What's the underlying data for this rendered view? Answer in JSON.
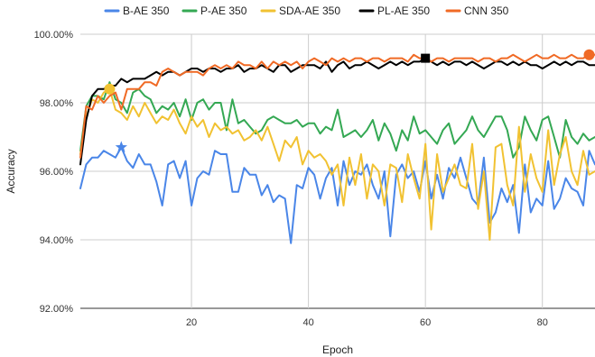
{
  "chart_data": {
    "type": "line",
    "title": "",
    "xlabel": "Epoch",
    "ylabel": "Accuracy",
    "xlim": [
      1,
      89
    ],
    "ylim": [
      92,
      100
    ],
    "x_ticks": [
      20,
      40,
      60,
      80
    ],
    "x_tick_labels": [
      "20",
      "40",
      "60",
      "80"
    ],
    "y_ticks": [
      92,
      94,
      96,
      98,
      100
    ],
    "y_tick_labels": [
      "92.00%",
      "94.00%",
      "96.00%",
      "98.00%",
      "100.00%"
    ],
    "grid": true,
    "legend_position": "top",
    "x": [
      1,
      2,
      3,
      4,
      5,
      6,
      7,
      8,
      9,
      10,
      11,
      12,
      13,
      14,
      15,
      16,
      17,
      18,
      19,
      20,
      21,
      22,
      23,
      24,
      25,
      26,
      27,
      28,
      29,
      30,
      31,
      32,
      33,
      34,
      35,
      36,
      37,
      38,
      39,
      40,
      41,
      42,
      43,
      44,
      45,
      46,
      47,
      48,
      49,
      50,
      51,
      52,
      53,
      54,
      55,
      56,
      57,
      58,
      59,
      60,
      61,
      62,
      63,
      64,
      65,
      66,
      67,
      68,
      69,
      70,
      71,
      72,
      73,
      74,
      75,
      76,
      77,
      78,
      79,
      80,
      81,
      82,
      83,
      84,
      85,
      86,
      87,
      88,
      89
    ],
    "series": [
      {
        "name": "B-AE 350",
        "color": "#4a86e8",
        "values": [
          95.5,
          96.2,
          96.4,
          96.4,
          96.6,
          96.5,
          96.4,
          96.7,
          96.3,
          96.1,
          96.5,
          96.2,
          96.2,
          95.7,
          95.0,
          96.2,
          96.3,
          95.8,
          96.3,
          95.0,
          95.8,
          96.0,
          95.9,
          96.6,
          96.5,
          96.5,
          95.4,
          95.4,
          96.1,
          95.9,
          95.9,
          95.3,
          95.6,
          95.1,
          95.3,
          95.2,
          93.9,
          95.6,
          95.5,
          96.1,
          95.9,
          95.2,
          95.8,
          96.1,
          95.0,
          96.3,
          95.6,
          96.0,
          95.9,
          96.2,
          95.6,
          95.2,
          96.0,
          94.1,
          95.9,
          96.2,
          95.8,
          96.0,
          95.4,
          96.3,
          95.2,
          95.9,
          95.2,
          96.1,
          95.8,
          96.4,
          95.8,
          95.2,
          95.0,
          96.4,
          94.5,
          94.8,
          95.5,
          95.1,
          95.6,
          94.2,
          96.2,
          94.8,
          95.2,
          95.0,
          96.3,
          94.9,
          95.2,
          95.8,
          95.5,
          95.4,
          95.0,
          96.6,
          96.2
        ]
      },
      {
        "name": "P-AE 350",
        "color": "#34a853",
        "values": [
          96.6,
          97.9,
          98.2,
          98.2,
          98.1,
          98.6,
          98.1,
          98.0,
          97.7,
          98.3,
          98.4,
          98.2,
          98.1,
          97.7,
          97.9,
          97.8,
          98.0,
          97.6,
          98.1,
          97.5,
          98.0,
          98.1,
          97.8,
          98.0,
          98.0,
          97.2,
          98.1,
          97.4,
          97.5,
          97.3,
          97.1,
          97.2,
          97.5,
          97.6,
          97.5,
          97.4,
          97.4,
          97.5,
          97.3,
          97.4,
          97.4,
          97.1,
          97.3,
          97.2,
          97.8,
          97.0,
          97.1,
          97.2,
          97.0,
          97.2,
          97.5,
          96.9,
          97.4,
          97.1,
          96.6,
          97.2,
          96.9,
          97.6,
          97.1,
          97.2,
          97.0,
          96.8,
          97.2,
          97.4,
          96.8,
          97.0,
          97.2,
          97.6,
          97.2,
          97.0,
          97.3,
          97.6,
          97.6,
          97.2,
          96.4,
          96.7,
          97.6,
          97.2,
          96.9,
          97.5,
          97.6,
          97.0,
          96.4,
          97.5,
          97.0,
          96.8,
          97.1,
          96.9,
          97.0
        ]
      },
      {
        "name": "SDA-AE 350",
        "color": "#f1c232",
        "values": [
          96.5,
          97.6,
          98.1,
          98.0,
          98.3,
          98.4,
          97.8,
          97.7,
          97.5,
          97.9,
          97.6,
          98.0,
          97.7,
          97.4,
          97.6,
          97.5,
          97.8,
          97.4,
          97.1,
          97.6,
          97.3,
          97.5,
          97.0,
          97.4,
          97.2,
          97.3,
          97.1,
          97.2,
          96.9,
          97.0,
          97.2,
          96.9,
          97.3,
          96.8,
          96.3,
          96.9,
          96.7,
          97.0,
          96.2,
          96.6,
          96.4,
          96.5,
          96.3,
          95.9,
          96.2,
          95.0,
          96.4,
          95.6,
          96.5,
          95.2,
          96.2,
          96.0,
          95.0,
          96.2,
          96.1,
          95.1,
          96.5,
          95.8,
          95.2,
          96.8,
          94.3,
          96.5,
          95.4,
          95.8,
          96.2,
          95.6,
          95.5,
          96.8,
          94.9,
          96.0,
          94.0,
          96.7,
          96.8,
          95.6,
          95.0,
          97.3,
          95.4,
          96.5,
          95.8,
          95.4,
          97.2,
          95.6,
          96.5,
          97.0,
          96.0,
          95.6,
          96.6,
          95.9,
          96.0
        ]
      },
      {
        "name": "PL-AE 350",
        "color": "#000000",
        "values": [
          96.2,
          97.5,
          98.2,
          98.4,
          98.4,
          98.5,
          98.5,
          98.7,
          98.6,
          98.7,
          98.7,
          98.7,
          98.8,
          98.9,
          98.8,
          98.9,
          98.9,
          98.8,
          98.9,
          99.0,
          99.0,
          98.9,
          99.0,
          99.0,
          98.9,
          99.0,
          99.0,
          99.1,
          98.9,
          99.0,
          99.0,
          99.1,
          99.0,
          98.9,
          99.1,
          99.1,
          98.9,
          99.0,
          99.1,
          99.1,
          99.1,
          99.0,
          99.2,
          98.9,
          99.1,
          99.2,
          99.0,
          99.1,
          99.1,
          99.2,
          99.1,
          99.0,
          99.1,
          99.2,
          99.1,
          99.2,
          99.1,
          99.2,
          99.2,
          99.3,
          99.2,
          99.1,
          99.2,
          99.1,
          99.2,
          99.2,
          99.1,
          99.2,
          99.1,
          99.0,
          99.1,
          99.2,
          99.2,
          99.1,
          99.2,
          99.1,
          99.2,
          99.1,
          99.1,
          99.0,
          99.1,
          99.2,
          99.1,
          99.2,
          99.1,
          99.2,
          99.2,
          99.1,
          99.1
        ]
      },
      {
        "name": "CNN 350",
        "color": "#f06a25",
        "values": [
          96.4,
          97.9,
          97.8,
          98.2,
          98.0,
          98.2,
          98.3,
          97.8,
          98.4,
          98.4,
          98.4,
          98.6,
          98.6,
          98.5,
          98.9,
          99.0,
          98.9,
          98.8,
          98.9,
          98.9,
          98.9,
          98.8,
          99.0,
          99.1,
          99.0,
          99.1,
          99.0,
          99.2,
          99.1,
          99.1,
          99.0,
          99.2,
          99.0,
          99.2,
          99.1,
          99.2,
          99.1,
          99.2,
          99.0,
          99.2,
          99.3,
          99.2,
          99.1,
          99.3,
          99.2,
          99.3,
          99.2,
          99.3,
          99.3,
          99.2,
          99.3,
          99.3,
          99.2,
          99.3,
          99.3,
          99.3,
          99.2,
          99.4,
          99.3,
          99.3,
          99.2,
          99.3,
          99.3,
          99.2,
          99.3,
          99.3,
          99.3,
          99.3,
          99.2,
          99.3,
          99.3,
          99.2,
          99.3,
          99.3,
          99.4,
          99.3,
          99.2,
          99.3,
          99.4,
          99.3,
          99.3,
          99.4,
          99.3,
          99.3,
          99.4,
          99.3,
          99.3,
          99.4,
          99.4
        ]
      }
    ],
    "highlights": [
      {
        "series": "B-AE 350",
        "shape": "star",
        "x": 8,
        "y": 96.7
      },
      {
        "series": "SDA-AE 350",
        "shape": "circle",
        "x": 6,
        "y": 98.4
      },
      {
        "series": "PL-AE 350",
        "shape": "square",
        "x": 60,
        "y": 99.3
      },
      {
        "series": "CNN 350",
        "shape": "circle",
        "x": 88,
        "y": 99.4
      }
    ]
  }
}
